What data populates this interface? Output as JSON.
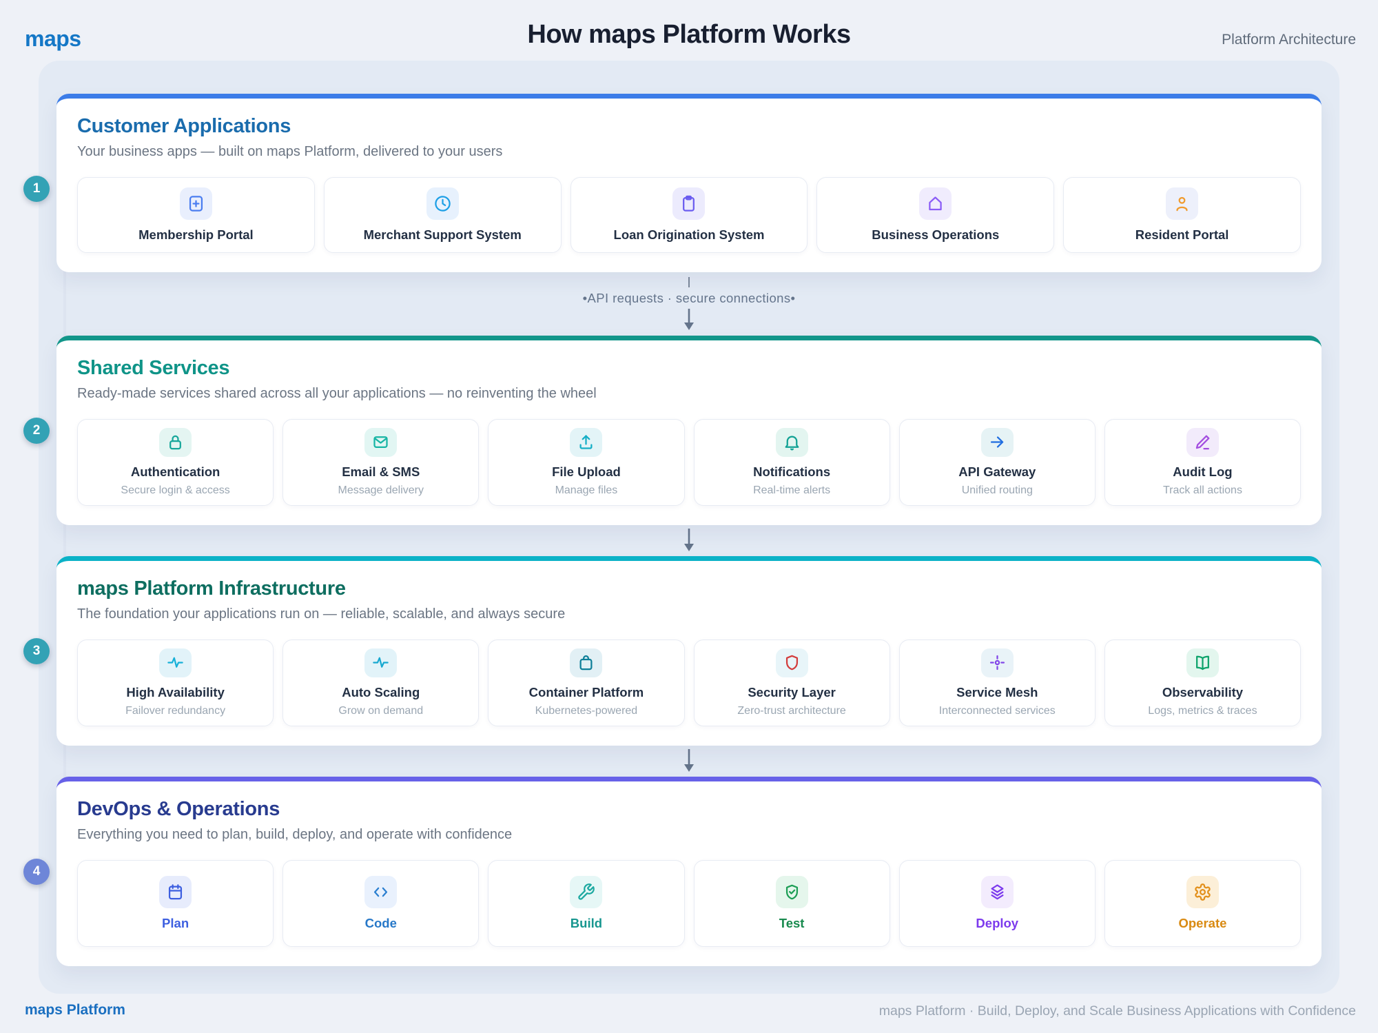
{
  "header": {
    "logo": "maps",
    "title": "How maps Platform Works",
    "subtitle": "Platform Architecture"
  },
  "connector": {
    "label": "•API requests  ·  secure connections•"
  },
  "colors": {
    "page_bg": "#eef1f7",
    "panel_bg": "#e3eaf4",
    "arrow": "#64748b"
  },
  "sections": [
    {
      "badge": "1",
      "badge_color": "#33a2b5",
      "accent": "#3b7ce8",
      "title_color": "#1a6cad",
      "title": "Customer Applications",
      "subtitle": "Your business apps — built on maps Platform, delivered to your users",
      "cards": [
        {
          "icon": "plus-square-icon",
          "color": "#4a7df0",
          "tile": "#e9effd",
          "label": "Membership Portal"
        },
        {
          "icon": "clock-icon",
          "color": "#1d9fe6",
          "tile": "#e7f1fd",
          "label": "Merchant Support System"
        },
        {
          "icon": "clipboard-icon",
          "color": "#6a5cf0",
          "tile": "#ecebfd",
          "label": "Loan Origination System"
        },
        {
          "icon": "home-icon",
          "color": "#8b5cf6",
          "tile": "#f0ecfd",
          "label": "Business Operations"
        },
        {
          "icon": "person-icon",
          "color": "#f09b2e",
          "tile": "#edf0fb",
          "label": "Resident Portal"
        }
      ]
    },
    {
      "badge": "2",
      "badge_color": "#33a2b5",
      "accent": "#12968a",
      "title_color": "#0f9488",
      "title": "Shared Services",
      "subtitle": "Ready-made services shared across all your applications — no reinventing the wheel",
      "cards": [
        {
          "icon": "lock-icon",
          "color": "#17a79b",
          "tile": "#e4f5f2",
          "label": "Authentication",
          "sub": "Secure login & access"
        },
        {
          "icon": "mail-icon",
          "color": "#17b5a4",
          "tile": "#e2f6f3",
          "label": "Email & SMS",
          "sub": "Message delivery"
        },
        {
          "icon": "upload-icon",
          "color": "#14aec6",
          "tile": "#e3f4f7",
          "label": "File Upload",
          "sub": "Manage files"
        },
        {
          "icon": "bell-icon",
          "color": "#12a194",
          "tile": "#e3f5f0",
          "label": "Notifications",
          "sub": "Real-time alerts"
        },
        {
          "icon": "arrow-right-icon",
          "color": "#1f6de0",
          "tile": "#e6f3f5",
          "label": "API Gateway",
          "sub": "Unified routing"
        },
        {
          "icon": "pen-icon",
          "color": "#a34de0",
          "tile": "#f2ebfb",
          "label": "Audit Log",
          "sub": "Track all actions"
        }
      ]
    },
    {
      "badge": "3",
      "badge_color": "#33a2b5",
      "accent": "#0bb2c7",
      "title_color": "#0e6e60",
      "title": "maps Platform Infrastructure",
      "subtitle": "The foundation your applications run on — reliable, scalable, and always secure",
      "cards": [
        {
          "icon": "pulse-icon",
          "color": "#17b0d8",
          "tile": "#e2f3f9",
          "label": "High Availability",
          "sub": "Failover redundancy"
        },
        {
          "icon": "pulse-icon",
          "color": "#17a8d0",
          "tile": "#e2f3f9",
          "label": "Auto Scaling",
          "sub": "Grow on demand"
        },
        {
          "icon": "bag-icon",
          "color": "#0f7f99",
          "tile": "#e2f0f5",
          "label": "Container Platform",
          "sub": "Kubernetes-powered"
        },
        {
          "icon": "shield-icon",
          "color": "#d33c3c",
          "tile": "#e8f5f9",
          "label": "Security Layer",
          "sub": "Zero-trust architecture"
        },
        {
          "icon": "mesh-icon",
          "color": "#8246e8",
          "tile": "#e9f3f8",
          "label": "Service Mesh",
          "sub": "Interconnected services"
        },
        {
          "icon": "book-open-icon",
          "color": "#0ea36b",
          "tile": "#e3f6ee",
          "label": "Observability",
          "sub": "Logs, metrics & traces"
        }
      ]
    },
    {
      "badge": "4",
      "badge_color": "#6e86d8",
      "accent": "#6761e8",
      "title_color": "#283b8f",
      "title": "DevOps & Operations",
      "subtitle": "Everything you need to plan, build, deploy, and operate with confidence",
      "cards": [
        {
          "icon": "calendar-icon",
          "color": "#3d5fe0",
          "tile": "#e7ecfc",
          "label": "Plan",
          "label_color": "#3d5fe0"
        },
        {
          "icon": "code-icon",
          "color": "#2b7fd0",
          "tile": "#e9f1fd",
          "label": "Code",
          "label_color": "#2778c8"
        },
        {
          "icon": "wrench-icon",
          "color": "#1ba8a0",
          "tile": "#e6f7f6",
          "label": "Build",
          "label_color": "#17968f"
        },
        {
          "icon": "shield-check-icon",
          "color": "#1d9e55",
          "tile": "#e5f6ec",
          "label": "Test",
          "label_color": "#188a4e"
        },
        {
          "icon": "layers-icon",
          "color": "#7c3aed",
          "tile": "#f3ecfd",
          "label": "Deploy",
          "label_color": "#7c3aed"
        },
        {
          "icon": "gear-icon",
          "color": "#e28f1a",
          "tile": "#fcefd8",
          "label": "Operate",
          "label_color": "#d98a12"
        }
      ]
    }
  ],
  "footer": {
    "left": "maps Platform",
    "right": "maps Platform · Build, Deploy, and Scale Business Applications with Confidence"
  }
}
